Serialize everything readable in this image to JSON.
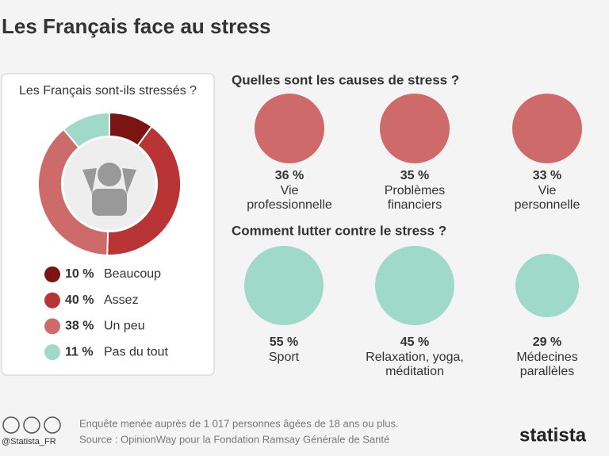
{
  "title": "Les Français face au stress",
  "chart_data": {
    "type": "pie",
    "title": "Les Français sont-ils stressés ?",
    "categories": [
      "Beaucoup",
      "Assez",
      "Un peu",
      "Pas du tout"
    ],
    "values": [
      10,
      40,
      38,
      11
    ],
    "value_labels": [
      "10 %",
      "40 %",
      "38 %",
      "11 %"
    ],
    "colors": [
      "#7c1414",
      "#b93434",
      "#cd6a6a",
      "#9fd9c9"
    ]
  },
  "causes": {
    "title": "Quelles sont les causes de stress ?",
    "items": [
      {
        "value": "36 %",
        "label": [
          "Vie",
          "professionnelle"
        ]
      },
      {
        "value": "35 %",
        "label": [
          "Problèmes",
          "financiers"
        ]
      },
      {
        "value": "33 %",
        "label": [
          "Vie",
          "personnelle"
        ]
      }
    ]
  },
  "remedies": {
    "title": "Comment lutter contre le stress ?",
    "items": [
      {
        "value": "55 %",
        "label": [
          "Sport"
        ]
      },
      {
        "value": "45 %",
        "label": [
          "Relaxation, yoga,",
          "méditation"
        ]
      },
      {
        "value": "29 %",
        "label": [
          "Médecines",
          "parallèles"
        ]
      }
    ]
  },
  "footer": {
    "handle": "@Statista_FR",
    "note": "Enquête menée auprès de 1 017 personnes âgées de 18 ans ou plus.",
    "source": "Source : OpinionWay pour la Fondation Ramsay Générale de Santé",
    "logo": "statista"
  }
}
